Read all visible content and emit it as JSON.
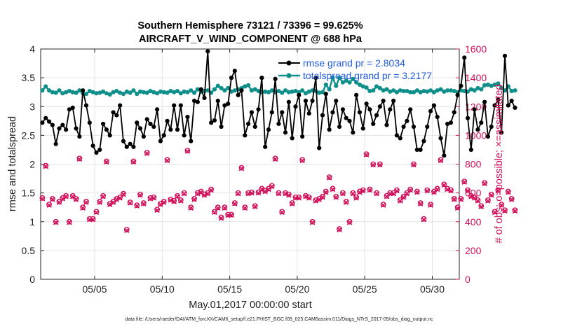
{
  "chart_data": {
    "type": "line",
    "title_line1": "Southern Hemisphere 73121 / 73396 = 99.625%",
    "title_line2": "AIRCRAFT_V_WIND_COMPONENT @ 688 hPa",
    "xlabel": "May.01,2017 00:00:00 start",
    "ylabel_left": "rmse and totalspread",
    "ylabel_right": "# of obs: o=possible; ×=assimilated",
    "footnote": "data file: /Users/raeder/DAI/ATM_forcXX/CAM6_setup/f.e21.FHIST_BGC.f09_025.CAM6assim.011/Diags_NTrS_2017-05/obs_diag_output.nc",
    "xlim": [
      1,
      32
    ],
    "ylim_left": [
      0,
      4
    ],
    "ylim_right": [
      0,
      1600
    ],
    "x_ticks": [
      5,
      10,
      15,
      20,
      25,
      30
    ],
    "x_tick_labels": [
      "05/05",
      "05/10",
      "05/15",
      "05/20",
      "05/25",
      "05/30"
    ],
    "y_left_ticks": [
      0,
      0.5,
      1,
      1.5,
      2,
      2.5,
      3,
      3.5,
      4
    ],
    "y_left_tick_labels": [
      "0",
      "0.5",
      "1",
      "1.5",
      "2",
      "2.5",
      "3",
      "3.5",
      "4"
    ],
    "y_right_ticks": [
      0,
      200,
      400,
      600,
      800,
      1000,
      1200,
      1400,
      1600
    ],
    "y_right_tick_labels": [
      "0",
      "200",
      "400",
      "600",
      "800",
      "1000",
      "1200",
      "1400",
      "1600"
    ],
    "grid": true,
    "legend_position": "top-center",
    "x_start": 1.125,
    "x_step": 0.25,
    "series": [
      {
        "name": "rmse grand pr = 2.8034",
        "axis": "left",
        "style": "line-dot",
        "color": "#000000",
        "values": [
          2.72,
          2.8,
          2.74,
          2.68,
          2.35,
          2.62,
          2.68,
          2.6,
          2.95,
          2.98,
          2.62,
          2.48,
          3.28,
          3.02,
          2.72,
          2.32,
          2.2,
          2.25,
          2.7,
          2.6,
          2.5,
          2.9,
          2.85,
          3.02,
          2.4,
          2.3,
          2.35,
          2.3,
          2.72,
          2.62,
          2.48,
          2.78,
          2.7,
          2.65,
          2.95,
          2.4,
          2.5,
          2.75,
          2.6,
          3.02,
          2.6,
          3.02,
          2.5,
          2.82,
          2.4,
          3.1,
          3.08,
          3.3,
          3.15,
          3.96,
          2.72,
          2.76,
          3.1,
          2.65,
          3.02,
          3.05,
          3.5,
          3.62,
          3.2,
          3.28,
          2.5,
          2.7,
          2.9,
          2.65,
          2.95,
          3.5,
          2.3,
          2.6,
          2.9,
          3.48,
          2.7,
          2.9,
          2.55,
          3.08,
          2.45,
          3.0,
          3.2,
          2.48,
          3.1,
          2.88,
          3.1,
          3.5,
          2.28,
          2.85,
          3.22,
          2.6,
          2.9,
          3.1,
          2.65,
          2.95,
          2.8,
          2.75,
          2.55,
          3.2,
          2.9,
          2.62,
          3.05,
          2.95,
          2.7,
          2.85,
          3.0,
          3.1,
          2.68,
          2.95,
          3.1,
          2.5,
          2.45,
          2.65,
          2.75,
          2.95,
          2.65,
          2.25,
          2.25,
          2.4,
          2.65,
          2.92,
          3.02,
          2.82,
          2.45,
          2.15,
          2.7,
          2.72,
          2.9,
          3.2,
          3.36,
          3.85,
          2.8,
          2.25,
          2.95,
          2.6,
          2.72,
          3.08,
          2.48,
          2.65,
          3.02,
          3.12,
          2.55,
          3.88,
          3.02,
          3.1,
          2.98
        ]
      },
      {
        "name": "totalspread grand pr = 3.2177",
        "axis": "left",
        "style": "line-dot",
        "color": "#0f8f8a",
        "values": [
          3.28,
          3.35,
          3.28,
          3.25,
          3.24,
          3.28,
          3.23,
          3.25,
          3.27,
          3.25,
          3.24,
          3.28,
          3.23,
          3.22,
          3.27,
          3.25,
          3.23,
          3.24,
          3.26,
          3.23,
          3.21,
          3.25,
          3.27,
          3.24,
          3.22,
          3.26,
          3.24,
          3.28,
          3.22,
          3.26,
          3.25,
          3.24,
          3.27,
          3.25,
          3.23,
          3.26,
          3.25,
          3.24,
          3.27,
          3.25,
          3.27,
          3.23,
          3.26,
          3.25,
          3.28,
          3.24,
          3.3,
          3.26,
          3.27,
          3.28,
          3.24,
          3.3,
          3.36,
          3.32,
          3.28,
          3.32,
          3.26,
          3.28,
          3.3,
          3.32,
          3.35,
          3.37,
          3.28,
          3.3,
          3.27,
          3.25,
          3.26,
          3.25,
          3.28,
          3.25,
          3.27,
          3.24,
          3.28,
          3.25,
          3.26,
          3.27,
          3.25,
          3.28,
          3.23,
          3.26,
          3.28,
          3.27,
          3.24,
          3.25,
          3.38,
          3.3,
          3.5,
          3.36,
          3.5,
          3.42,
          3.45,
          3.42,
          3.48,
          3.42,
          3.38,
          3.35,
          3.33,
          3.27,
          3.28,
          3.35,
          3.32,
          3.28,
          3.3,
          3.26,
          3.28,
          3.25,
          3.28,
          3.27,
          3.27,
          3.25,
          3.25,
          3.28,
          3.25,
          3.27,
          3.26,
          3.28,
          3.25,
          3.28,
          3.3,
          3.26,
          3.28,
          3.28,
          3.27,
          3.25,
          3.28,
          3.27,
          3.26,
          3.3,
          3.28,
          3.32,
          3.3,
          3.37,
          3.38,
          3.36,
          3.38,
          3.4,
          3.32,
          3.28,
          3.35,
          3.27,
          3.28
        ]
      }
    ],
    "obs_possible": {
      "name": "obs possible",
      "axis": "right",
      "color": "#d0105a",
      "values": [
        565,
        790,
        520,
        560,
        400,
        540,
        565,
        580,
        400,
        580,
        560,
        840,
        500,
        540,
        420,
        420,
        470,
        540,
        580,
        820,
        525,
        540,
        560,
        570,
        595,
        345,
        535,
        820,
        515,
        590,
        530,
        880,
        565,
        570,
        485,
        525,
        540,
        830,
        555,
        545,
        580,
        550,
        600,
        895,
        500,
        560,
        600,
        610,
        590,
        600,
        625,
        470,
        500,
        430,
        500,
        450,
        450,
        530,
        600,
        775,
        500,
        600,
        605,
        510,
        605,
        630,
        615,
        630,
        650,
        840,
        600,
        470,
        600,
        590,
        530,
        570,
        570,
        830,
        580,
        570,
        400,
        550,
        560,
        575,
        610,
        710,
        630,
        575,
        350,
        600,
        540,
        400,
        600,
        570,
        610,
        620,
        870,
        625,
        800,
        600,
        800,
        520,
        580,
        600,
        600,
        620,
        550,
        575,
        600,
        625,
        800,
        610,
        530,
        420,
        620,
        520,
        610,
        630,
        830,
        660,
        630,
        620,
        560,
        500,
        560,
        680,
        620,
        580,
        570,
        550,
        510,
        670,
        550,
        590,
        470,
        620,
        520,
        480,
        610,
        560,
        480
      ]
    },
    "obs_assimilated": {
      "name": "obs assimilated",
      "axis": "right",
      "color": "#d0105a",
      "values": [
        560,
        785,
        515,
        555,
        395,
        535,
        560,
        575,
        395,
        575,
        555,
        835,
        495,
        535,
        415,
        415,
        465,
        535,
        575,
        815,
        520,
        535,
        555,
        565,
        590,
        340,
        530,
        815,
        510,
        585,
        525,
        875,
        560,
        565,
        480,
        520,
        535,
        825,
        550,
        540,
        575,
        545,
        595,
        890,
        495,
        555,
        595,
        605,
        585,
        595,
        620,
        465,
        495,
        425,
        495,
        445,
        445,
        525,
        595,
        770,
        495,
        595,
        600,
        505,
        600,
        625,
        610,
        625,
        645,
        835,
        595,
        465,
        595,
        585,
        525,
        565,
        565,
        825,
        575,
        565,
        395,
        545,
        555,
        570,
        605,
        705,
        625,
        570,
        345,
        595,
        535,
        395,
        595,
        565,
        605,
        615,
        865,
        620,
        795,
        595,
        795,
        515,
        575,
        595,
        595,
        615,
        545,
        570,
        595,
        620,
        795,
        605,
        525,
        415,
        615,
        515,
        605,
        625,
        825,
        655,
        625,
        615,
        555,
        495,
        555,
        675,
        615,
        575,
        565,
        545,
        505,
        665,
        545,
        585,
        465,
        615,
        515,
        475,
        605,
        555,
        475
      ]
    }
  }
}
